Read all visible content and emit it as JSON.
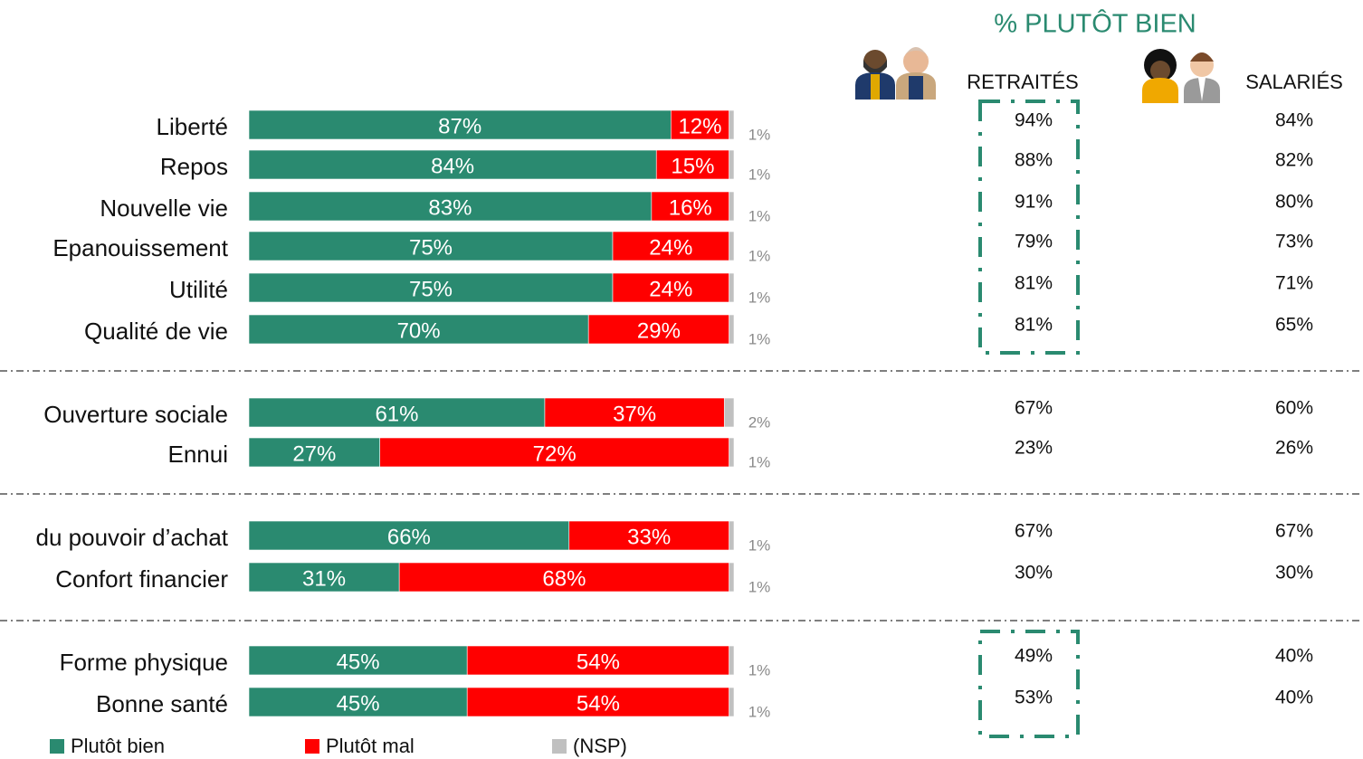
{
  "chart_data": {
    "type": "stacked-bar",
    "categories": [
      "Liberté",
      "Repos",
      "Nouvelle vie",
      "Epanouissement",
      "Utilité",
      "Qualité de vie",
      "Ouverture sociale",
      "Ennui",
      "du pouvoir d’achat",
      "Confort financier",
      "Forme physique",
      "Bonne santé"
    ],
    "series": [
      {
        "name": "Plutôt bien",
        "color": "#2a8a70",
        "values": [
          87,
          84,
          83,
          75,
          75,
          70,
          61,
          27,
          66,
          31,
          45,
          45
        ],
        "value_labels": [
          "87%",
          "84%",
          "83%",
          "75%",
          "75%",
          "70%",
          "61%",
          "27%",
          "66%",
          "31%",
          "45%",
          "45%"
        ]
      },
      {
        "name": "Plutôt mal",
        "color": "#ff0000",
        "values": [
          12,
          15,
          16,
          24,
          24,
          29,
          37,
          72,
          33,
          68,
          54,
          54
        ],
        "value_labels": [
          "12%",
          "15%",
          "16%",
          "24%",
          "24%",
          "29%",
          "37%",
          "72%",
          "33%",
          "68%",
          "54%",
          "54%"
        ]
      },
      {
        "name": "(NSP)",
        "color": "#c0c0c0",
        "values": [
          1,
          1,
          1,
          1,
          1,
          1,
          2,
          1,
          1,
          1,
          1,
          1
        ],
        "value_labels": [
          "1%",
          "1%",
          "1%",
          "1%",
          "1%",
          "1%",
          "2%",
          "1%",
          "1%",
          "1%",
          "1%",
          "1%"
        ]
      }
    ],
    "comparison": {
      "title": "% PLUTÔT BIEN",
      "columns": [
        {
          "name": "RETRAITÉS",
          "values": [
            94,
            88,
            91,
            79,
            81,
            81,
            67,
            23,
            67,
            30,
            49,
            53
          ],
          "value_labels": [
            "94%",
            "88%",
            "91%",
            "79%",
            "81%",
            "81%",
            "67%",
            "23%",
            "67%",
            "30%",
            "49%",
            "53%"
          ]
        },
        {
          "name": "SALARIÉS",
          "values": [
            84,
            82,
            80,
            73,
            71,
            65,
            60,
            26,
            67,
            30,
            40,
            40
          ],
          "value_labels": [
            "84%",
            "82%",
            "80%",
            "73%",
            "71%",
            "65%",
            "60%",
            "26%",
            "67%",
            "30%",
            "40%",
            "40%"
          ]
        }
      ]
    }
  }
}
